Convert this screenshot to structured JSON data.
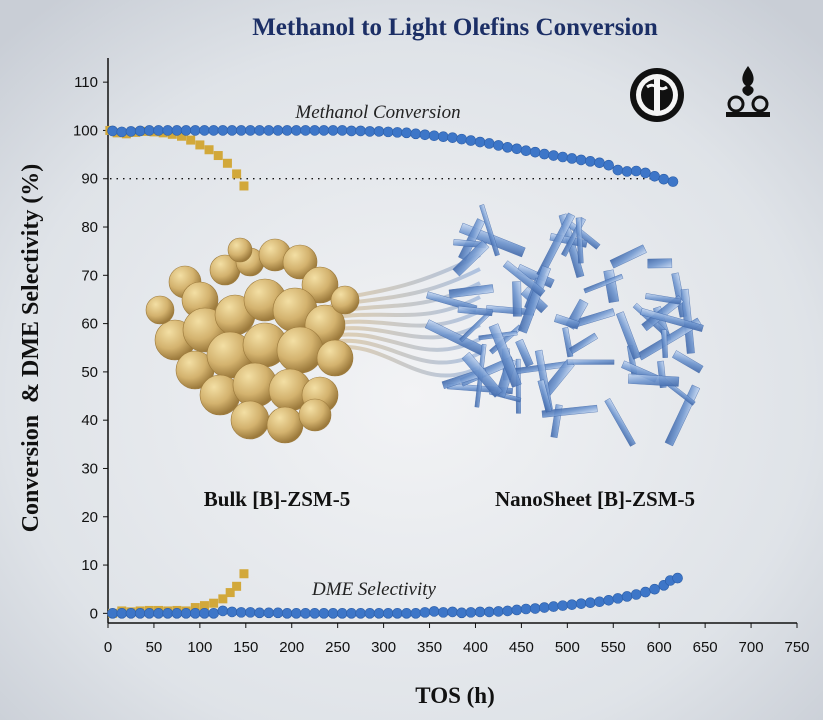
{
  "chart_data": {
    "type": "scatter",
    "title": "Methanol to Light Olefins Conversion",
    "xlabel": "TOS (h)",
    "ylabel": "Conversion  & DME Selectivity (%)",
    "xlim": [
      0,
      750
    ],
    "ylim": [
      -2,
      115
    ],
    "xticks": [
      "0",
      "50",
      "100",
      "150",
      "200",
      "250",
      "300",
      "350",
      "400",
      "450",
      "500",
      "550",
      "600",
      "650",
      "700",
      "750"
    ],
    "yticks": [
      "0",
      "10",
      "20",
      "30",
      "40",
      "50",
      "60",
      "70",
      "80",
      "90",
      "100",
      "110"
    ],
    "reference_line": {
      "y": 90,
      "style": "dotted"
    },
    "annotations": {
      "methanol_conversion": "Methanol Conversion",
      "dme_selectivity": "DME Selectivity",
      "bulk": "Bulk [B]-ZSM-5",
      "nanosheet": "NanoSheet [B]-ZSM-5"
    },
    "colors": {
      "bulk": "#d2a83a",
      "nanosheet": "#3d76c8",
      "title": "#1c2f66"
    },
    "series": [
      {
        "name": "Bulk [B]-ZSM-5",
        "marker": "square",
        "color": "#d2a83a",
        "points": [
          [
            2,
            100
          ],
          [
            10,
            99.5
          ],
          [
            20,
            99.3
          ],
          [
            30,
            99.6
          ],
          [
            40,
            99.8
          ],
          [
            50,
            99.7
          ],
          [
            60,
            99.5
          ],
          [
            70,
            99.2
          ],
          [
            80,
            98.8
          ],
          [
            90,
            98.0
          ],
          [
            100,
            97.0
          ],
          [
            110,
            96.0
          ],
          [
            120,
            94.8
          ],
          [
            130,
            93.2
          ],
          [
            140,
            91.0
          ],
          [
            148,
            88.5
          ]
        ]
      },
      {
        "name": "Bulk [B]-ZSM-5",
        "marker": "square",
        "color": "#d2a83a",
        "points": [
          [
            5,
            0
          ],
          [
            15,
            0.5
          ],
          [
            25,
            0.3
          ],
          [
            35,
            0.5
          ],
          [
            45,
            0.6
          ],
          [
            55,
            0.6
          ],
          [
            65,
            0.5
          ],
          [
            75,
            0.6
          ],
          [
            85,
            0.5
          ],
          [
            95,
            1.2
          ],
          [
            105,
            1.6
          ],
          [
            115,
            2.1
          ],
          [
            125,
            3.0
          ],
          [
            133,
            4.3
          ],
          [
            140,
            5.6
          ],
          [
            148,
            8.2
          ]
        ]
      },
      {
        "name": "NanoSheet [B]-ZSM-5",
        "marker": "circle",
        "color": "#3d76c8",
        "points": [
          [
            5,
            99.9
          ],
          [
            15,
            99.7
          ],
          [
            25,
            99.8
          ],
          [
            35,
            99.9
          ],
          [
            45,
            100
          ],
          [
            55,
            100
          ],
          [
            65,
            100
          ],
          [
            75,
            100
          ],
          [
            85,
            100
          ],
          [
            95,
            100
          ],
          [
            105,
            100
          ],
          [
            115,
            100
          ],
          [
            125,
            100
          ],
          [
            135,
            100
          ],
          [
            145,
            100
          ],
          [
            155,
            100
          ],
          [
            165,
            100
          ],
          [
            175,
            100
          ],
          [
            185,
            100
          ],
          [
            195,
            100
          ],
          [
            205,
            100
          ],
          [
            215,
            100
          ],
          [
            225,
            100
          ],
          [
            235,
            100
          ],
          [
            245,
            100
          ],
          [
            255,
            100
          ],
          [
            265,
            99.9
          ],
          [
            275,
            99.9
          ],
          [
            285,
            99.8
          ],
          [
            295,
            99.8
          ],
          [
            305,
            99.7
          ],
          [
            315,
            99.6
          ],
          [
            325,
            99.5
          ],
          [
            335,
            99.3
          ],
          [
            345,
            99.1
          ],
          [
            355,
            98.9
          ],
          [
            365,
            98.7
          ],
          [
            375,
            98.5
          ],
          [
            385,
            98.2
          ],
          [
            395,
            97.9
          ],
          [
            405,
            97.6
          ],
          [
            415,
            97.3
          ],
          [
            425,
            96.9
          ],
          [
            435,
            96.5
          ],
          [
            445,
            96.2
          ],
          [
            455,
            95.8
          ],
          [
            465,
            95.5
          ],
          [
            475,
            95.1
          ],
          [
            485,
            94.8
          ],
          [
            495,
            94.5
          ],
          [
            505,
            94.2
          ],
          [
            515,
            93.9
          ],
          [
            525,
            93.6
          ],
          [
            535,
            93.3
          ],
          [
            545,
            92.8
          ],
          [
            555,
            91.8
          ],
          [
            565,
            91.5
          ],
          [
            575,
            91.6
          ],
          [
            585,
            91.2
          ],
          [
            595,
            90.5
          ],
          [
            605,
            89.9
          ],
          [
            615,
            89.4
          ]
        ]
      },
      {
        "name": "NanoSheet [B]-ZSM-5",
        "marker": "circle",
        "color": "#3d76c8",
        "points": [
          [
            5,
            0
          ],
          [
            15,
            0
          ],
          [
            25,
            0
          ],
          [
            35,
            0
          ],
          [
            45,
            0
          ],
          [
            55,
            0
          ],
          [
            65,
            0
          ],
          [
            75,
            0
          ],
          [
            85,
            0
          ],
          [
            95,
            0
          ],
          [
            105,
            0
          ],
          [
            115,
            0
          ],
          [
            125,
            0.5
          ],
          [
            135,
            0.3
          ],
          [
            145,
            0.2
          ],
          [
            155,
            0.2
          ],
          [
            165,
            0.1
          ],
          [
            175,
            0.1
          ],
          [
            185,
            0.1
          ],
          [
            195,
            0
          ],
          [
            205,
            0
          ],
          [
            215,
            0
          ],
          [
            225,
            0
          ],
          [
            235,
            0
          ],
          [
            245,
            0
          ],
          [
            255,
            0
          ],
          [
            265,
            0
          ],
          [
            275,
            0
          ],
          [
            285,
            0
          ],
          [
            295,
            0
          ],
          [
            305,
            0
          ],
          [
            315,
            0
          ],
          [
            325,
            0
          ],
          [
            335,
            0
          ],
          [
            345,
            0.2
          ],
          [
            355,
            0.4
          ],
          [
            365,
            0.2
          ],
          [
            375,
            0.3
          ],
          [
            385,
            0.1
          ],
          [
            395,
            0.2
          ],
          [
            405,
            0.3
          ],
          [
            415,
            0.3
          ],
          [
            425,
            0.4
          ],
          [
            435,
            0.5
          ],
          [
            445,
            0.7
          ],
          [
            455,
            0.9
          ],
          [
            465,
            1.0
          ],
          [
            475,
            1.2
          ],
          [
            485,
            1.4
          ],
          [
            495,
            1.6
          ],
          [
            505,
            1.8
          ],
          [
            515,
            2.0
          ],
          [
            525,
            2.2
          ],
          [
            535,
            2.4
          ],
          [
            545,
            2.7
          ],
          [
            555,
            3.1
          ],
          [
            565,
            3.5
          ],
          [
            575,
            3.9
          ],
          [
            585,
            4.4
          ],
          [
            595,
            5.0
          ],
          [
            605,
            5.8
          ],
          [
            612,
            6.8
          ],
          [
            620,
            7.3
          ]
        ]
      }
    ]
  }
}
